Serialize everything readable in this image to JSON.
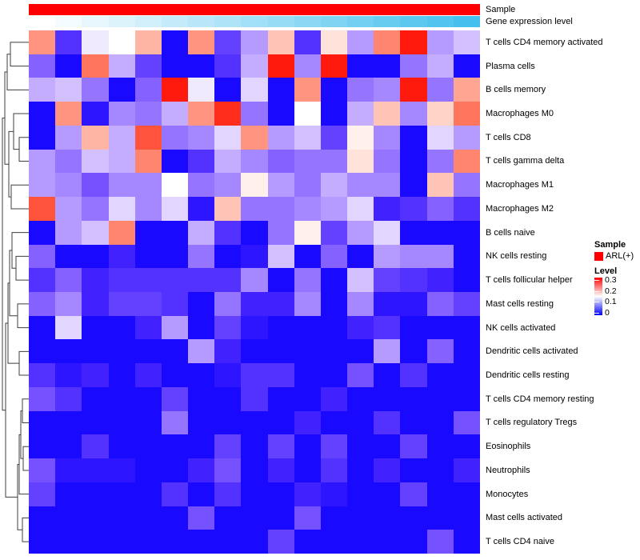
{
  "annotations": {
    "sample_label": "Sample",
    "gene_label": "Gene expression level"
  },
  "legend": {
    "sample": {
      "title": "Sample",
      "items": [
        {
          "label": "ARL(+)",
          "color": "#FF0000"
        }
      ]
    },
    "level": {
      "title": "Level",
      "ticks": [
        "0.3",
        "0.2",
        "0.1",
        "0"
      ],
      "min": 0,
      "max": 0.3
    }
  },
  "chart_data": {
    "type": "heatmap",
    "n_rows": 22,
    "n_columns": 17,
    "value_range": [
      0,
      0.3
    ],
    "colormap": {
      "low": "#0000FF",
      "mid": "#FFFFFF",
      "high": "#FF0000",
      "mid_value": 0.15
    },
    "column_annotations": {
      "sample": {
        "label": "Sample",
        "value_all_columns": "ARL(+)",
        "color": "#FF0000"
      },
      "gene_expression_level": {
        "label": "Gene expression level",
        "type": "gradient",
        "low_color": "#FFFFFF",
        "high_color": "#45C0EE",
        "direction": "increasing-left-to-right"
      }
    },
    "rows": [
      {
        "name": "T cells CD4 memory activated",
        "values": [
          0.22,
          0.04,
          0.14,
          0.15,
          0.2,
          0.01,
          0.22,
          0.05,
          0.1,
          0.19,
          0.04,
          0.17,
          0.1,
          0.23,
          0.29,
          0.1,
          0.12
        ]
      },
      {
        "name": "Plasma cells",
        "values": [
          0.07,
          0.01,
          0.24,
          0.11,
          0.05,
          0.01,
          0.01,
          0.04,
          0.11,
          0.29,
          0.09,
          0.29,
          0.01,
          0.01,
          0.08,
          0.11,
          0.01
        ]
      },
      {
        "name": "B cells memory",
        "values": [
          0.11,
          0.12,
          0.08,
          0.01,
          0.07,
          0.29,
          0.14,
          0.01,
          0.13,
          0.01,
          0.22,
          0.01,
          0.08,
          0.09,
          0.29,
          0.08,
          0.21
        ]
      },
      {
        "name": "Macrophages M0",
        "values": [
          0.01,
          0.22,
          0.02,
          0.09,
          0.08,
          0.11,
          0.22,
          0.28,
          0.08,
          0.01,
          0.15,
          0.01,
          0.11,
          0.19,
          0.09,
          0.18,
          0.24
        ]
      },
      {
        "name": "T cells CD8",
        "values": [
          0.01,
          0.1,
          0.2,
          0.11,
          0.26,
          0.08,
          0.09,
          0.13,
          0.22,
          0.1,
          0.12,
          0.05,
          0.16,
          0.09,
          0.01,
          0.13,
          0.1
        ]
      },
      {
        "name": "T cells gamma delta",
        "values": [
          0.1,
          0.08,
          0.12,
          0.11,
          0.23,
          0.01,
          0.04,
          0.11,
          0.09,
          0.07,
          0.08,
          0.08,
          0.17,
          0.08,
          0.01,
          0.08,
          0.23
        ]
      },
      {
        "name": "Macrophages M1",
        "values": [
          0.1,
          0.09,
          0.06,
          0.09,
          0.09,
          0.15,
          0.08,
          0.09,
          0.16,
          0.1,
          0.08,
          0.11,
          0.09,
          0.09,
          0.01,
          0.19,
          0.08
        ]
      },
      {
        "name": "Macrophages M2",
        "values": [
          0.26,
          0.1,
          0.08,
          0.13,
          0.09,
          0.13,
          0.02,
          0.19,
          0.08,
          0.08,
          0.09,
          0.1,
          0.13,
          0.03,
          0.04,
          0.07,
          0.04
        ]
      },
      {
        "name": "B cells naive",
        "values": [
          0.01,
          0.1,
          0.12,
          0.23,
          0.01,
          0.01,
          0.11,
          0.04,
          0.01,
          0.08,
          0.16,
          0.05,
          0.1,
          0.13,
          0.01,
          0.01,
          0.01
        ]
      },
      {
        "name": "NK cells resting",
        "values": [
          0.07,
          0.01,
          0.01,
          0.03,
          0.01,
          0.01,
          0.08,
          0.01,
          0.02,
          0.12,
          0.01,
          0.07,
          0.01,
          0.1,
          0.09,
          0.09,
          0.01
        ]
      },
      {
        "name": "T cells follicular helper",
        "values": [
          0.04,
          0.07,
          0.03,
          0.04,
          0.04,
          0.04,
          0.04,
          0.04,
          0.09,
          0.01,
          0.08,
          0.01,
          0.12,
          0.05,
          0.04,
          0.03,
          0.01
        ]
      },
      {
        "name": "Mast cells resting",
        "values": [
          0.07,
          0.09,
          0.03,
          0.05,
          0.05,
          0.04,
          0.01,
          0.08,
          0.03,
          0.03,
          0.09,
          0.01,
          0.09,
          0.02,
          0.02,
          0.07,
          0.05
        ]
      },
      {
        "name": "NK cells activated",
        "values": [
          0.01,
          0.13,
          0.01,
          0.01,
          0.03,
          0.1,
          0.01,
          0.05,
          0.02,
          0.01,
          0.01,
          0.01,
          0.03,
          0.04,
          0.01,
          0.01,
          0.01
        ]
      },
      {
        "name": "Dendritic cells activated",
        "values": [
          0.01,
          0.01,
          0.01,
          0.01,
          0.01,
          0.01,
          0.1,
          0.03,
          0.01,
          0.01,
          0.01,
          0.01,
          0.01,
          0.1,
          0.01,
          0.07,
          0.01
        ]
      },
      {
        "name": "Dendritic cells resting",
        "values": [
          0.04,
          0.02,
          0.03,
          0.01,
          0.03,
          0.01,
          0.01,
          0.02,
          0.04,
          0.04,
          0.01,
          0.01,
          0.06,
          0.01,
          0.04,
          0.01,
          0.01
        ]
      },
      {
        "name": "T cells CD4 memory resting",
        "values": [
          0.06,
          0.04,
          0.01,
          0.01,
          0.01,
          0.05,
          0.01,
          0.01,
          0.04,
          0.01,
          0.01,
          0.03,
          0.01,
          0.01,
          0.01,
          0.01,
          0.01
        ]
      },
      {
        "name": "T cells regulatory  Tregs",
        "values": [
          0.01,
          0.01,
          0.01,
          0.01,
          0.01,
          0.08,
          0.01,
          0.01,
          0.01,
          0.01,
          0.03,
          0.01,
          0.01,
          0.04,
          0.01,
          0.01,
          0.06
        ]
      },
      {
        "name": "Eosinophils",
        "values": [
          0.01,
          0.01,
          0.04,
          0.01,
          0.01,
          0.01,
          0.01,
          0.05,
          0.01,
          0.05,
          0.01,
          0.05,
          0.01,
          0.01,
          0.05,
          0.01,
          0.01
        ]
      },
      {
        "name": "Neutrophils",
        "values": [
          0.06,
          0.02,
          0.02,
          0.02,
          0.01,
          0.01,
          0.03,
          0.06,
          0.01,
          0.03,
          0.01,
          0.04,
          0.01,
          0.03,
          0.01,
          0.01,
          0.03
        ]
      },
      {
        "name": "Monocytes",
        "values": [
          0.05,
          0.01,
          0.01,
          0.01,
          0.01,
          0.04,
          0.01,
          0.04,
          0.01,
          0.01,
          0.03,
          0.02,
          0.01,
          0.01,
          0.05,
          0.01,
          0.01
        ]
      },
      {
        "name": "Mast cells activated",
        "values": [
          0.01,
          0.01,
          0.01,
          0.01,
          0.01,
          0.01,
          0.06,
          0.01,
          0.01,
          0.01,
          0.06,
          0.01,
          0.01,
          0.01,
          0.01,
          0.01,
          0.01
        ]
      },
      {
        "name": "T cells CD4 naive",
        "values": [
          0.01,
          0.01,
          0.01,
          0.01,
          0.01,
          0.01,
          0.01,
          0.01,
          0.01,
          0.05,
          0.01,
          0.01,
          0.01,
          0.01,
          0.01,
          0.06,
          0.01
        ]
      }
    ],
    "row_dendrogram": {
      "line_color": "#3F3F3F",
      "merges": [
        [
          "L1",
          "L2",
          13
        ],
        [
          "N1",
          "L3",
          9
        ],
        [
          "L5",
          "L6",
          24
        ],
        [
          "L4",
          "N3",
          17
        ],
        [
          "L7",
          "L8",
          14
        ],
        [
          "N4",
          "N5",
          11
        ],
        [
          "N2",
          "N6",
          6
        ],
        [
          "L10",
          "L11",
          20
        ],
        [
          "L9",
          "N8",
          15
        ],
        [
          "L12",
          "L13",
          22
        ],
        [
          "N9",
          "N10",
          12
        ],
        [
          "L14",
          "L15",
          24
        ],
        [
          "N11",
          "N12",
          10
        ],
        [
          "L16",
          "L17",
          28
        ],
        [
          "L18",
          "L19",
          29
        ],
        [
          "N14",
          "N15",
          26
        ],
        [
          "L20",
          "N16",
          24
        ],
        [
          "L21",
          "L22",
          28
        ],
        [
          "N17",
          "N18",
          22
        ],
        [
          "N13",
          "N19",
          7
        ],
        [
          "N7",
          "N20",
          3
        ]
      ]
    }
  }
}
